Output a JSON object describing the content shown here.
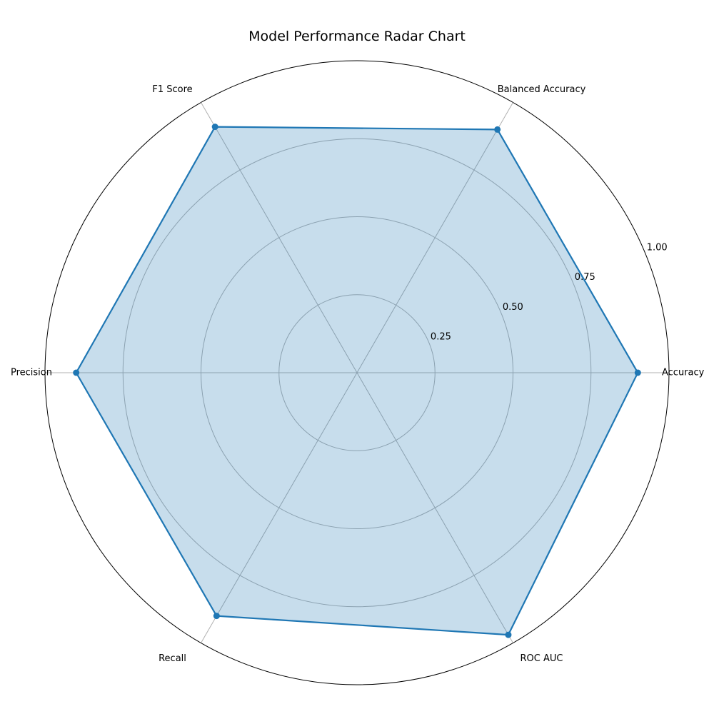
{
  "chart_data": {
    "type": "radar",
    "title": "Model Performance Radar Chart",
    "categories": [
      "Accuracy",
      "Balanced Accuracy",
      "F1 Score",
      "Precision",
      "Recall",
      "ROC AUC"
    ],
    "series": [
      {
        "values": [
          0.9,
          0.9,
          0.91,
          0.9,
          0.9,
          0.97
        ]
      }
    ],
    "rlim": [
      0,
      1.0
    ],
    "r_ticks": [
      0.25,
      0.5,
      0.75,
      1.0
    ],
    "r_tick_labels": [
      "0.25",
      "0.50",
      "0.75",
      "1.00"
    ],
    "grid": true,
    "legend": "none",
    "colors": {
      "line": "#1f77b4",
      "fill": "#1f77b4",
      "grid": "#b0b0b0",
      "outer_ring": "#000000"
    }
  }
}
